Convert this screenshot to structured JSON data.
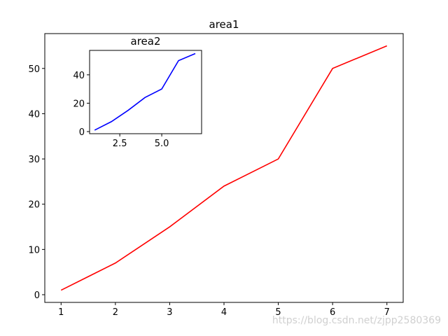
{
  "chart_data": [
    {
      "type": "line",
      "title": "area1",
      "x": [
        1,
        2,
        3,
        4,
        5,
        6,
        7
      ],
      "values": [
        1,
        7,
        15,
        24,
        30,
        50,
        55
      ],
      "color": "#ff0000",
      "xlim": [
        0.7,
        7.3
      ],
      "ylim": [
        -1.7,
        57.7
      ],
      "xticks": [
        1,
        2,
        3,
        4,
        5,
        6,
        7
      ],
      "yticks": [
        0,
        10,
        20,
        30,
        40,
        50
      ]
    },
    {
      "type": "line",
      "title": "area2",
      "x": [
        1,
        2,
        3,
        4,
        5,
        6,
        7
      ],
      "values": [
        1,
        7,
        15,
        24,
        30,
        50,
        55
      ],
      "color": "#0000ff",
      "xlim": [
        0.7,
        7.375
      ],
      "ylim": [
        -1.5,
        57.2
      ],
      "xticks": [
        2.5,
        {
          "value": 5,
          "label": "5.0"
        }
      ],
      "yticks": [
        0,
        20,
        40
      ]
    }
  ],
  "watermark": "https://blog.csdn.net/zjpp2580369"
}
